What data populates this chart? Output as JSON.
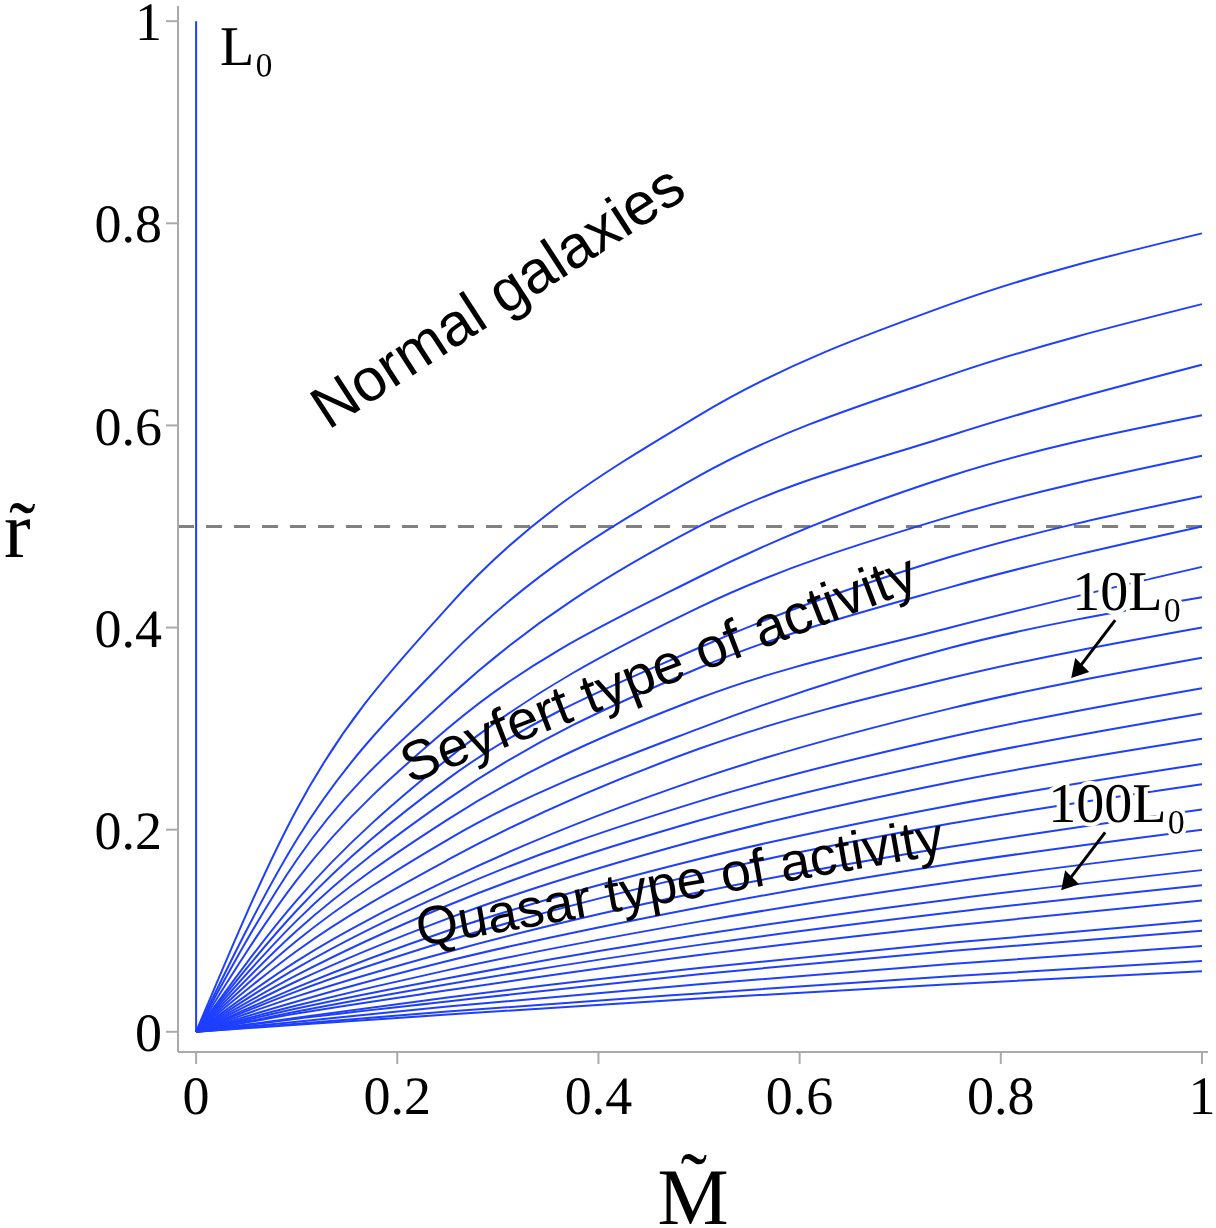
{
  "chart_data": {
    "type": "line",
    "xlabel": "M̃",
    "ylabel": "r̃",
    "x": [
      0,
      0.1,
      0.25,
      0.5,
      0.75,
      1
    ],
    "xlim": [
      -0.018,
      1.006
    ],
    "ylim": [
      -0.02,
      1.015
    ],
    "xticks": [
      0,
      0.2,
      0.4,
      0.6,
      0.8,
      1
    ],
    "yticks": [
      0,
      0.2,
      0.4,
      0.6,
      0.8,
      1
    ],
    "grid": false,
    "marker": "none",
    "line_style": "solid",
    "ref_lines": [
      {
        "axis": "y",
        "value": 0.5,
        "color": "#808080",
        "line_style": "dashed"
      }
    ],
    "annotations": [
      {
        "text": "L₀",
        "x": 0,
        "y": 1
      },
      "Normal galaxies",
      "Seyfert type of activity",
      "Quasar type of activity",
      {
        "text": "10L₀",
        "x": 0.87,
        "y": 0.35
      },
      {
        "text": "100L₀",
        "x": 0.86,
        "y": 0.14
      }
    ],
    "series": [
      {
        "color": "#1f3fff",
        "x": [
          0,
          0
        ],
        "values": [
          0,
          1
        ]
      },
      {
        "color": "#1f3fff",
        "values": [
          0,
          0.22,
          0.42,
          0.61,
          0.72,
          0.79
        ]
      },
      {
        "color": "#1f3fff",
        "values": [
          0,
          0.19,
          0.37,
          0.55,
          0.65,
          0.72
        ]
      },
      {
        "color": "#1f3fff",
        "values": [
          0,
          0.17,
          0.33,
          0.5,
          0.59,
          0.66
        ]
      },
      {
        "color": "#1f3fff",
        "values": [
          0,
          0.15,
          0.3,
          0.45,
          0.55,
          0.61
        ]
      },
      {
        "color": "#1f3fff",
        "values": [
          0,
          0.13,
          0.27,
          0.42,
          0.51,
          0.57
        ]
      },
      {
        "color": "#1f3fff",
        "values": [
          0,
          0.12,
          0.25,
          0.38,
          0.47,
          0.53
        ]
      },
      {
        "color": "#1f3fff",
        "values": [
          0,
          0.11,
          0.23,
          0.36,
          0.44,
          0.5
        ]
      },
      {
        "color": "#1f3fff",
        "values": [
          0,
          0.1,
          0.21,
          0.33,
          0.4,
          0.46
        ]
      },
      {
        "color": "#1f3fff",
        "values": [
          0,
          0.09,
          0.19,
          0.3,
          0.38,
          0.43
        ]
      },
      {
        "color": "#1f3fff",
        "values": [
          0,
          0.08,
          0.17,
          0.28,
          0.35,
          0.4
        ]
      },
      {
        "color": "#1f3fff",
        "values": [
          0,
          0.07,
          0.15,
          0.25,
          0.32,
          0.37
        ]
      },
      {
        "color": "#1f3fff",
        "values": [
          0,
          0.063,
          0.138,
          0.228,
          0.292,
          0.34
        ]
      },
      {
        "color": "#1f3fff",
        "values": [
          0,
          0.056,
          0.125,
          0.209,
          0.269,
          0.315
        ]
      },
      {
        "color": "#1f3fff",
        "values": [
          0,
          0.05,
          0.112,
          0.19,
          0.247,
          0.29
        ]
      },
      {
        "color": "#1f3fff",
        "values": [
          0,
          0.044,
          0.1,
          0.171,
          0.224,
          0.265
        ]
      },
      {
        "color": "#1f3fff",
        "values": [
          0,
          0.04,
          0.09,
          0.156,
          0.206,
          0.245
        ]
      },
      {
        "color": "#1f3fff",
        "values": [
          0,
          0.035,
          0.079,
          0.138,
          0.183,
          0.22
        ]
      },
      {
        "color": "#1f3fff",
        "values": [
          0,
          0.03,
          0.07,
          0.123,
          0.166,
          0.2
        ]
      },
      {
        "color": "#1f3fff",
        "values": [
          0,
          0.026,
          0.061,
          0.109,
          0.148,
          0.18
        ]
      },
      {
        "color": "#1f3fff",
        "values": [
          0,
          0.023,
          0.053,
          0.096,
          0.131,
          0.16
        ]
      },
      {
        "color": "#1f3fff",
        "values": [
          0,
          0.02,
          0.047,
          0.086,
          0.118,
          0.145
        ]
      },
      {
        "color": "#1f3fff",
        "values": [
          0,
          0.018,
          0.041,
          0.076,
          0.105,
          0.13
        ]
      },
      {
        "color": "#1f3fff",
        "values": [
          0,
          0.014,
          0.034,
          0.063,
          0.088,
          0.11
        ]
      },
      {
        "color": "#1f3fff",
        "values": [
          0,
          0.013,
          0.03,
          0.057,
          0.08,
          0.1
        ]
      },
      {
        "color": "#1f3fff",
        "values": [
          0,
          0.01,
          0.025,
          0.047,
          0.067,
          0.085
        ]
      },
      {
        "color": "#1f3fff",
        "values": [
          0,
          0.008,
          0.02,
          0.038,
          0.055,
          0.07
        ]
      },
      {
        "color": "#1f3fff",
        "values": [
          0,
          0.007,
          0.017,
          0.033,
          0.047,
          0.06
        ]
      }
    ]
  }
}
